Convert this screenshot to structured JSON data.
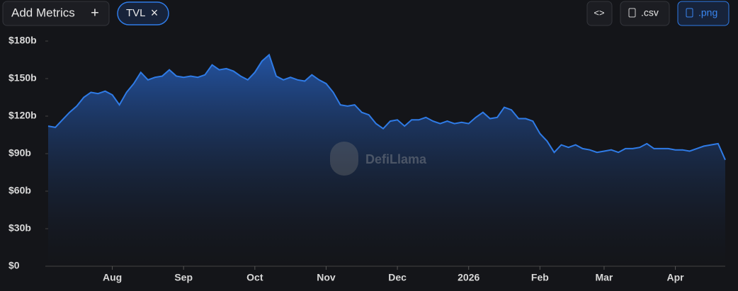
{
  "toolbar": {
    "add_metrics": "Add Metrics",
    "add_icon": "+",
    "chip": "TVL",
    "chip_close": "×",
    "embed": "<>",
    "csv": ".csv",
    "png": ".png"
  },
  "chart_data": {
    "type": "area",
    "watermark": "DefiLlama",
    "color": "#2f7be6",
    "categories": [
      null,
      null,
      null,
      null,
      null,
      null,
      null,
      null,
      null,
      "Aug",
      null,
      null,
      null,
      null,
      null,
      null,
      null,
      null,
      null,
      "Sep",
      null,
      null,
      null,
      null,
      null,
      null,
      null,
      null,
      null,
      "Oct",
      null,
      null,
      null,
      null,
      null,
      null,
      null,
      null,
      null,
      "Nov",
      null,
      null,
      null,
      null,
      null,
      null,
      null,
      null,
      null,
      "Dec",
      null,
      null,
      null,
      null,
      null,
      null,
      null,
      null,
      null,
      "2026",
      null,
      null,
      null,
      null,
      null,
      null,
      null,
      null,
      null,
      "Feb",
      null,
      null,
      null,
      null,
      null,
      null,
      null,
      null,
      "Mar",
      null,
      null,
      null,
      null,
      null,
      null,
      null,
      null,
      null,
      "Apr",
      null,
      null,
      null,
      null,
      null,
      null,
      null
    ],
    "values": [
      112,
      111,
      117,
      123,
      128,
      135,
      139,
      138,
      140,
      137,
      129,
      139,
      146,
      155,
      149,
      151,
      152,
      157,
      152,
      151,
      152,
      151,
      153,
      161,
      157,
      158,
      156,
      152,
      149,
      155,
      164,
      169,
      152,
      149,
      151,
      149,
      148,
      153,
      149,
      146,
      139,
      129,
      128,
      129,
      123,
      121,
      114,
      110,
      116,
      117,
      112,
      117,
      117,
      119,
      116,
      114,
      116,
      114,
      115,
      114,
      119,
      123,
      118,
      119,
      127,
      125,
      118,
      118,
      116,
      106,
      100,
      91,
      97,
      95,
      97,
      94,
      93,
      91,
      92,
      93,
      91,
      94,
      94,
      95,
      98,
      94,
      94,
      94,
      93,
      93,
      92,
      94,
      96,
      97,
      98,
      85
    ],
    "ylim": [
      0,
      180
    ],
    "yticks": [
      {
        "value": 0,
        "label": "$0"
      },
      {
        "value": 30,
        "label": "$30b"
      },
      {
        "value": 60,
        "label": "$60b"
      },
      {
        "value": 90,
        "label": "$90b"
      },
      {
        "value": 120,
        "label": "$120b"
      },
      {
        "value": 150,
        "label": "$150b"
      },
      {
        "value": 180,
        "label": "$180b"
      }
    ],
    "grid": false
  }
}
